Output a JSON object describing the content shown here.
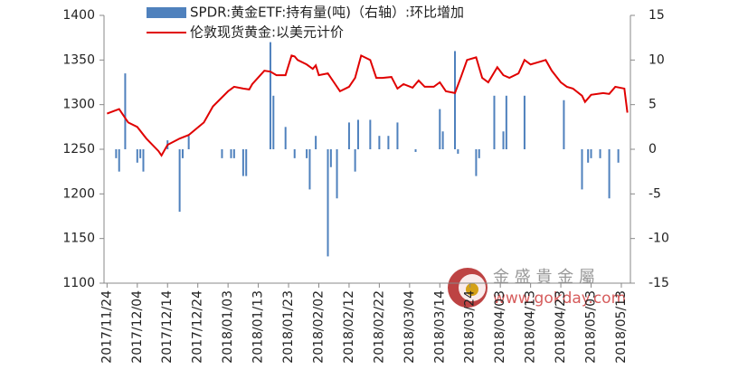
{
  "chart_data": {
    "type": "bar-line",
    "legend_position": "top",
    "xlim": [
      "2017/11/23",
      "2018/05/16"
    ],
    "xticks": [
      "2017/11/24",
      "2017/12/04",
      "2017/12/14",
      "2017/12/24",
      "2018/01/03",
      "2018/01/13",
      "2018/01/23",
      "2018/02/02",
      "2018/02/12",
      "2018/02/22",
      "2018/03/04",
      "2018/03/14",
      "2018/03/24",
      "2018/04/03",
      "2018/04/13",
      "2018/04/23",
      "2018/05/03",
      "2018/05/13"
    ],
    "ylim": [
      1100,
      1400
    ],
    "yticks": [
      1100,
      1150,
      1200,
      1250,
      1300,
      1350,
      1400
    ],
    "y2lim": [
      -15,
      15
    ],
    "y2ticks": [
      -15,
      -10,
      -5,
      0,
      5,
      10,
      15
    ],
    "series": [
      {
        "name": "SPDR:黄金ETF:持有量(吨)（右轴）:环比增加",
        "type": "bar",
        "axis": "y2",
        "color": "#4f81bd",
        "x": [
          "2017/11/27",
          "2017/11/28",
          "2017/11/30",
          "2017/12/04",
          "2017/12/05",
          "2017/12/06",
          "2017/12/14",
          "2017/12/18",
          "2017/12/19",
          "2017/12/21",
          "2018/01/01",
          "2018/01/04",
          "2018/01/05",
          "2018/01/08",
          "2018/01/09",
          "2018/01/17",
          "2018/01/18",
          "2018/01/22",
          "2018/01/25",
          "2018/01/29",
          "2018/01/30",
          "2018/02/01",
          "2018/02/05",
          "2018/02/06",
          "2018/02/08",
          "2018/02/12",
          "2018/02/14",
          "2018/02/15",
          "2018/02/19",
          "2018/02/22",
          "2018/02/25",
          "2018/02/28",
          "2018/03/06",
          "2018/03/14",
          "2018/03/15",
          "2018/03/19",
          "2018/03/20",
          "2018/03/26",
          "2018/03/27",
          "2018/04/01",
          "2018/04/04",
          "2018/04/05",
          "2018/04/11",
          "2018/04/24",
          "2018/04/30",
          "2018/05/02",
          "2018/05/03",
          "2018/05/06",
          "2018/05/09",
          "2018/05/12"
        ],
        "values": [
          -1,
          -2.5,
          8.5,
          -1.5,
          -1,
          -2.5,
          1,
          -7,
          -1,
          1.5,
          -1,
          -1,
          -1,
          -3,
          -3,
          12,
          6,
          2.5,
          -1,
          -1,
          -4.5,
          1.5,
          -12,
          -2,
          -5.5,
          3,
          -2.5,
          3.3,
          3.3,
          1.5,
          1.5,
          3,
          -0.3,
          4.5,
          2,
          11,
          -0.5,
          -3,
          -1,
          6,
          2,
          6,
          6,
          5.5,
          -4.5,
          -1.5,
          -1,
          -1,
          -5.5,
          -1.5
        ]
      },
      {
        "name": "伦敦现货黄金:以美元计价",
        "type": "line",
        "color": "#e00000",
        "x": [
          "2017/11/24",
          "2017/11/28",
          "2017/12/01",
          "2017/12/04",
          "2017/12/07",
          "2017/12/11",
          "2017/12/12",
          "2017/12/14",
          "2017/12/18",
          "2017/12/21",
          "2017/12/26",
          "2017/12/29",
          "2018/01/03",
          "2018/01/05",
          "2018/01/08",
          "2018/01/10",
          "2018/01/11",
          "2018/01/15",
          "2018/01/17",
          "2018/01/19",
          "2018/01/22",
          "2018/01/24",
          "2018/01/25",
          "2018/01/26",
          "2018/01/29",
          "2018/01/31",
          "2018/02/01",
          "2018/02/02",
          "2018/02/05",
          "2018/02/07",
          "2018/02/09",
          "2018/02/12",
          "2018/02/14",
          "2018/02/16",
          "2018/02/19",
          "2018/02/21",
          "2018/02/23",
          "2018/02/26",
          "2018/02/28",
          "2018/03/02",
          "2018/03/05",
          "2018/03/07",
          "2018/03/09",
          "2018/03/12",
          "2018/03/14",
          "2018/03/16",
          "2018/03/19",
          "2018/03/21",
          "2018/03/23",
          "2018/03/26",
          "2018/03/28",
          "2018/03/30",
          "2018/04/02",
          "2018/04/04",
          "2018/04/06",
          "2018/04/09",
          "2018/04/11",
          "2018/04/13",
          "2018/04/16",
          "2018/04/18",
          "2018/04/20",
          "2018/04/23",
          "2018/04/25",
          "2018/04/27",
          "2018/04/30",
          "2018/05/01",
          "2018/05/03",
          "2018/05/07",
          "2018/05/09",
          "2018/05/11",
          "2018/05/14",
          "2018/05/15"
        ],
        "values": [
          1290,
          1295,
          1280,
          1275,
          1262,
          1248,
          1243,
          1255,
          1262,
          1266,
          1280,
          1298,
          1315,
          1320,
          1318,
          1317,
          1323,
          1338,
          1337,
          1333,
          1333,
          1355,
          1354,
          1350,
          1345,
          1340,
          1344,
          1333,
          1335,
          1325,
          1315,
          1320,
          1330,
          1355,
          1350,
          1330,
          1330,
          1331,
          1318,
          1323,
          1319,
          1327,
          1320,
          1320,
          1325,
          1315,
          1313,
          1331,
          1350,
          1353,
          1330,
          1325,
          1342,
          1333,
          1330,
          1335,
          1350,
          1345,
          1348,
          1350,
          1338,
          1325,
          1320,
          1318,
          1310,
          1303,
          1311,
          1313,
          1312,
          1320,
          1318,
          1291
        ]
      }
    ],
    "watermark": {
      "brand": "金 盛 貴 金 屬",
      "url": "www.gokday.com"
    }
  }
}
